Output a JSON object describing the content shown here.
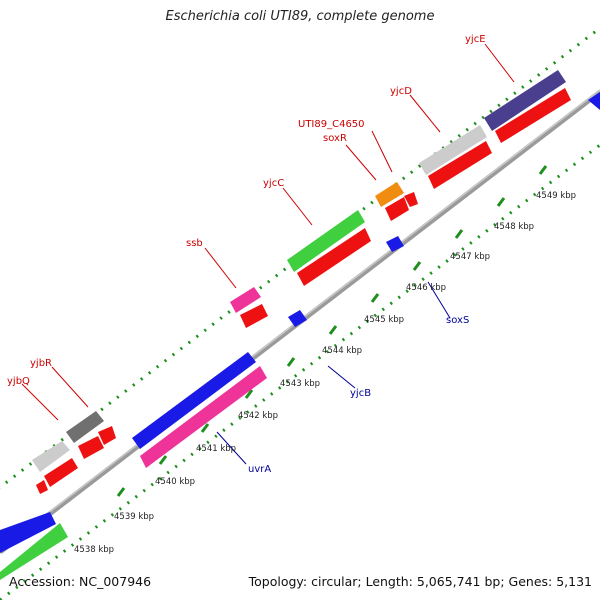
{
  "title": "Escherichia coli UTI89, complete genome",
  "accession": "Accession: NC_007946",
  "summary": "Topology: circular; Length: 5,065,741 bp; Genes: 5,131",
  "colors": {
    "backbone": "#8a8a8a",
    "tick": "#1d8f1d",
    "label_upper": "#cc0000",
    "label_lower": "#000099"
  },
  "scale_labels": [
    "4538 kbp",
    "4539 kbp",
    "4540 kbp",
    "4541 kbp",
    "4542 kbp",
    "4543 kbp",
    "4544 kbp",
    "4545 kbp",
    "4546 kbp",
    "4547 kbp",
    "4548 kbp",
    "4549 kbp"
  ],
  "gene_labels_upper": [
    "yjbQ",
    "yjbR",
    "ssb",
    "yjcC",
    "soxR",
    "UTI89_C4650",
    "yjcD",
    "yjcE"
  ],
  "gene_labels_lower": [
    "uvrA",
    "yjcB",
    "soxS"
  ]
}
